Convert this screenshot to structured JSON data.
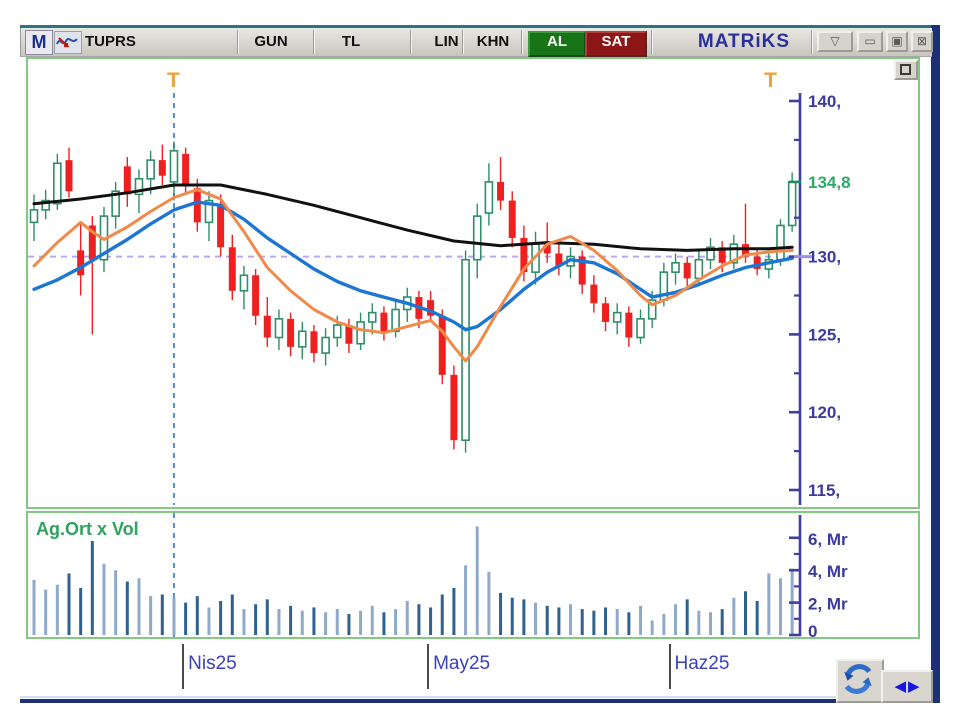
{
  "toolbar": {
    "menu_button": "M",
    "symbol": "TUPRS",
    "period": "GUN",
    "currency": "TL",
    "scale": "LIN",
    "khn": "KHN",
    "buy_label": "AL",
    "sell_label": "SAT",
    "brand": "MATRiKS"
  },
  "window_controls": {
    "dropdown": "▽",
    "minimize": "▭",
    "maximize": "▣",
    "close": "⊠"
  },
  "bottom_controls": {
    "prev": "◀",
    "next": "▶",
    "refresh": "sync-arrows-icon"
  },
  "colors": {
    "buy_green": "#177417",
    "sell_red": "#8d1616",
    "brand_navy": "#2b2f9e",
    "candle_up_stroke": "#2f8e66",
    "candle_up_solid": "#1d7a3e",
    "candle_down": "#ee2020",
    "ma_slow": "#111111",
    "ma_mid": "#1d76d2",
    "ma_fast": "#f08a4b",
    "axis_blue": "#3b3b9e",
    "last_price_green": "#2fa868",
    "vol_bar_dark": "#2f6190",
    "vol_bar_light": "#8fa9c9",
    "crosshair_blue": "#4f8fe8",
    "dashed_level_lavender": "#b9a8f2",
    "pane_border_green": "#82ca82",
    "event_marker_orange": "#eba23f"
  },
  "chart_data": {
    "type": "candlestick",
    "symbol": "TUPRS",
    "period": "GUN",
    "last_price": 134.8,
    "dashed_price_level": 130,
    "price_axis": {
      "range": [
        113.5,
        142.5
      ],
      "labels": [
        {
          "value": 140,
          "text": "140,",
          "highlight": false
        },
        {
          "value": 134.8,
          "text": "134,8",
          "highlight": true
        },
        {
          "value": 130,
          "text": "130,",
          "highlight": false
        },
        {
          "value": 125,
          "text": "125,",
          "highlight": false
        },
        {
          "value": 120,
          "text": "120,",
          "highlight": false
        },
        {
          "value": 115,
          "text": "115,",
          "highlight": false
        }
      ],
      "minor_ticks": [
        137.5,
        132.5,
        127.5,
        122.5,
        117.5
      ]
    },
    "candles": [
      [
        132.2,
        134.0,
        131.0,
        133.0
      ],
      [
        133.0,
        134.3,
        132.4,
        133.6
      ],
      [
        133.4,
        136.6,
        133.0,
        136.0
      ],
      [
        136.2,
        137.0,
        133.8,
        134.2
      ],
      [
        130.4,
        132.2,
        127.5,
        128.8
      ],
      [
        132.0,
        132.6,
        125.0,
        129.8
      ],
      [
        129.8,
        133.2,
        129.0,
        132.6
      ],
      [
        132.6,
        134.8,
        131.8,
        134.2
      ],
      [
        135.8,
        136.4,
        133.2,
        134.0
      ],
      [
        134.0,
        135.6,
        132.8,
        135.0
      ],
      [
        135.0,
        136.8,
        134.0,
        136.2
      ],
      [
        136.2,
        137.2,
        134.6,
        135.2
      ],
      [
        134.8,
        137.4,
        133.6,
        136.8
      ],
      [
        136.6,
        137.0,
        134.0,
        134.6
      ],
      [
        134.4,
        135.0,
        131.6,
        132.2
      ],
      [
        132.2,
        134.2,
        131.0,
        133.6
      ],
      [
        133.4,
        134.0,
        130.0,
        130.6
      ],
      [
        130.6,
        131.4,
        127.2,
        127.8
      ],
      [
        127.8,
        129.4,
        126.6,
        128.8
      ],
      [
        128.8,
        129.2,
        125.6,
        126.2
      ],
      [
        126.2,
        127.4,
        124.2,
        124.8
      ],
      [
        124.8,
        126.6,
        124.0,
        126.0
      ],
      [
        126.0,
        126.4,
        123.6,
        124.2
      ],
      [
        124.2,
        125.8,
        123.4,
        125.2
      ],
      [
        125.2,
        125.6,
        123.2,
        123.8
      ],
      [
        123.8,
        125.4,
        123.0,
        124.8
      ],
      [
        124.8,
        126.2,
        124.2,
        125.6
      ],
      [
        125.6,
        126.0,
        123.8,
        124.4
      ],
      [
        124.4,
        126.4,
        124.0,
        125.8
      ],
      [
        125.8,
        127.0,
        125.0,
        126.4
      ],
      [
        126.4,
        126.8,
        124.6,
        125.2
      ],
      [
        125.2,
        127.2,
        124.8,
        126.6
      ],
      [
        126.6,
        128.0,
        125.8,
        127.4
      ],
      [
        127.4,
        127.8,
        125.4,
        126.0
      ],
      [
        127.2,
        127.8,
        125.8,
        126.2
      ],
      [
        126.2,
        126.6,
        121.8,
        122.4
      ],
      [
        122.4,
        123.0,
        117.6,
        118.2
      ],
      [
        118.2,
        130.4,
        117.4,
        129.8
      ],
      [
        129.8,
        133.4,
        128.6,
        132.6
      ],
      [
        132.8,
        136.0,
        132.0,
        134.8
      ],
      [
        134.8,
        136.4,
        133.0,
        133.6
      ],
      [
        133.6,
        134.2,
        130.6,
        131.2
      ],
      [
        131.2,
        132.0,
        128.4,
        129.0
      ],
      [
        129.0,
        131.6,
        128.2,
        130.8
      ],
      [
        130.8,
        132.2,
        129.6,
        130.2
      ],
      [
        130.2,
        131.0,
        128.8,
        129.4
      ],
      [
        129.4,
        130.6,
        128.6,
        130.0
      ],
      [
        130.0,
        130.4,
        127.6,
        128.2
      ],
      [
        128.2,
        128.8,
        126.4,
        127.0
      ],
      [
        127.0,
        127.4,
        125.2,
        125.8
      ],
      [
        125.8,
        127.0,
        125.0,
        126.4
      ],
      [
        126.4,
        126.8,
        124.2,
        124.8
      ],
      [
        124.8,
        126.6,
        124.4,
        126.0
      ],
      [
        126.0,
        127.8,
        125.4,
        127.2
      ],
      [
        127.2,
        129.6,
        126.8,
        129.0
      ],
      [
        129.0,
        130.2,
        128.2,
        129.6
      ],
      [
        129.6,
        130.0,
        128.0,
        128.6
      ],
      [
        128.6,
        130.4,
        128.2,
        129.8
      ],
      [
        129.8,
        131.2,
        129.2,
        130.6
      ],
      [
        130.6,
        131.0,
        129.0,
        129.6
      ],
      [
        129.6,
        131.4,
        129.2,
        130.8
      ],
      [
        130.8,
        133.4,
        129.6,
        130.0
      ],
      [
        130.0,
        130.6,
        128.8,
        129.2
      ],
      [
        129.2,
        130.2,
        128.6,
        129.8
      ],
      [
        129.8,
        132.4,
        129.4,
        132.0
      ],
      [
        132.0,
        135.4,
        131.6,
        134.8
      ]
    ],
    "moving_averages": [
      {
        "name": "slow-ma",
        "color": "#111111",
        "width": 3,
        "points": [
          [
            0,
            133.4
          ],
          [
            4,
            133.7
          ],
          [
            8,
            134.1
          ],
          [
            12,
            134.6
          ],
          [
            16,
            134.6
          ],
          [
            20,
            134.0
          ],
          [
            24,
            133.3
          ],
          [
            28,
            132.5
          ],
          [
            32,
            131.7
          ],
          [
            36,
            131.0
          ],
          [
            40,
            130.7
          ],
          [
            44,
            130.9
          ],
          [
            48,
            130.8
          ],
          [
            52,
            130.5
          ],
          [
            56,
            130.4
          ],
          [
            60,
            130.5
          ],
          [
            63,
            130.5
          ],
          [
            65,
            130.6
          ]
        ]
      },
      {
        "name": "mid-ma",
        "color": "#1d76d2",
        "width": 3.4,
        "points": [
          [
            0,
            127.9
          ],
          [
            2,
            128.5
          ],
          [
            4,
            129.3
          ],
          [
            6,
            130.2
          ],
          [
            8,
            131.1
          ],
          [
            10,
            132.1
          ],
          [
            12,
            133.0
          ],
          [
            14,
            133.5
          ],
          [
            16,
            133.3
          ],
          [
            18,
            132.4
          ],
          [
            20,
            131.2
          ],
          [
            22,
            130.2
          ],
          [
            24,
            129.2
          ],
          [
            26,
            128.4
          ],
          [
            28,
            127.8
          ],
          [
            30,
            127.4
          ],
          [
            32,
            127.0
          ],
          [
            34,
            126.5
          ],
          [
            36,
            125.8
          ],
          [
            37,
            125.3
          ],
          [
            38,
            125.5
          ],
          [
            40,
            126.6
          ],
          [
            42,
            127.9
          ],
          [
            44,
            129.0
          ],
          [
            46,
            129.8
          ],
          [
            48,
            129.6
          ],
          [
            50,
            128.9
          ],
          [
            52,
            127.9
          ],
          [
            53,
            127.4
          ],
          [
            55,
            127.7
          ],
          [
            57,
            128.2
          ],
          [
            59,
            128.8
          ],
          [
            61,
            129.3
          ],
          [
            63,
            129.6
          ],
          [
            65,
            129.9
          ]
        ]
      },
      {
        "name": "fast-ma",
        "color": "#f08a4b",
        "width": 3,
        "points": [
          [
            0,
            129.4
          ],
          [
            2,
            130.9
          ],
          [
            4,
            132.2
          ],
          [
            5,
            131.6
          ],
          [
            6,
            131.1
          ],
          [
            8,
            131.9
          ],
          [
            10,
            132.9
          ],
          [
            12,
            133.8
          ],
          [
            14,
            134.3
          ],
          [
            16,
            133.7
          ],
          [
            18,
            131.6
          ],
          [
            20,
            129.3
          ],
          [
            22,
            127.8
          ],
          [
            24,
            126.6
          ],
          [
            26,
            125.8
          ],
          [
            28,
            125.3
          ],
          [
            30,
            125.1
          ],
          [
            32,
            125.5
          ],
          [
            34,
            125.9
          ],
          [
            35,
            125.2
          ],
          [
            36,
            124.2
          ],
          [
            37,
            123.3
          ],
          [
            38,
            124.2
          ],
          [
            40,
            126.8
          ],
          [
            42,
            129.2
          ],
          [
            44,
            130.8
          ],
          [
            46,
            131.3
          ],
          [
            48,
            130.4
          ],
          [
            50,
            129.1
          ],
          [
            52,
            127.5
          ],
          [
            53,
            126.9
          ],
          [
            55,
            127.5
          ],
          [
            57,
            128.5
          ],
          [
            59,
            129.4
          ],
          [
            61,
            130.1
          ],
          [
            63,
            130.3
          ],
          [
            65,
            130.4
          ]
        ]
      }
    ],
    "volume": {
      "label": "Ag.Ort x Vol",
      "unit": "Mr",
      "axis_labels": [
        {
          "value": 6,
          "text": "6, Mr"
        },
        {
          "value": 4,
          "text": "4, Mr"
        },
        {
          "value": 2,
          "text": "2, Mr"
        },
        {
          "value": 0,
          "text": "0"
        }
      ],
      "minor_ticks": [
        5,
        3,
        1
      ],
      "values": [
        3.4,
        2.8,
        3.1,
        3.8,
        2.9,
        5.8,
        4.4,
        4.0,
        3.3,
        3.5,
        2.4,
        2.5,
        2.3,
        2.0,
        2.4,
        1.7,
        2.1,
        2.5,
        1.6,
        1.9,
        2.2,
        1.6,
        1.8,
        1.5,
        1.7,
        1.4,
        1.6,
        1.3,
        1.5,
        1.8,
        1.4,
        1.6,
        2.1,
        1.9,
        1.7,
        2.5,
        2.9,
        4.3,
        6.7,
        3.9,
        2.6,
        2.3,
        2.2,
        2.0,
        1.8,
        1.7,
        1.9,
        1.6,
        1.5,
        1.7,
        1.6,
        1.4,
        1.8,
        0.9,
        1.3,
        1.9,
        2.2,
        1.5,
        1.4,
        1.6,
        2.3,
        2.7,
        2.1,
        3.8,
        3.5,
        4.1
      ]
    },
    "date_ticks": [
      {
        "label": "Nis25",
        "index": 12.7
      },
      {
        "label": "May25",
        "index": 33.7
      },
      {
        "label": "Haz25",
        "index": 54.4
      }
    ],
    "event_markers": [
      {
        "text": "T",
        "index": 12
      },
      {
        "text": "T",
        "index": 63.2
      }
    ],
    "crosshair_index": 12
  }
}
